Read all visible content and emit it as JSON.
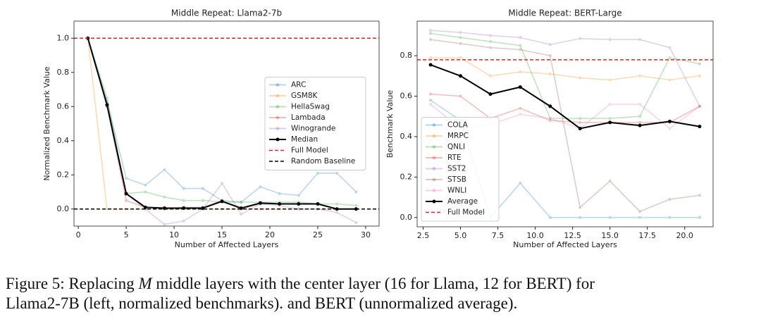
{
  "chart_data": [
    {
      "type": "line",
      "title": "Middle Repeat: Llama2-7b",
      "x_label": "Number of Affected Layers",
      "y_label": "Normalized Benchmark Value",
      "x": [
        1,
        3,
        5,
        7,
        9,
        11,
        13,
        15,
        17,
        19,
        21,
        23,
        25,
        27,
        29
      ],
      "series": [
        {
          "name": "ARC",
          "color": "#1f77b4",
          "highlight": false,
          "values": [
            1.0,
            0.63,
            0.18,
            0.14,
            0.23,
            0.12,
            0.12,
            0.05,
            0.04,
            0.13,
            0.09,
            0.08,
            0.21,
            0.21,
            0.1
          ]
        },
        {
          "name": "GSM8K",
          "color": "#ff7f0e",
          "highlight": false,
          "values": [
            1.0,
            0.0,
            0.0,
            0.0,
            0.0,
            0.0,
            0.0,
            0.0,
            0.0,
            0.0,
            0.0,
            0.0,
            0.0,
            0.0,
            0.0
          ]
        },
        {
          "name": "HellaSwag",
          "color": "#2ca02c",
          "highlight": false,
          "values": [
            1.0,
            0.65,
            0.09,
            0.1,
            0.07,
            0.05,
            0.05,
            0.04,
            0.04,
            0.04,
            0.04,
            0.04,
            0.03,
            0.03,
            0.02
          ]
        },
        {
          "name": "Lambada",
          "color": "#d62728",
          "highlight": false,
          "values": [
            1.0,
            0.6,
            0.05,
            0.01,
            0.0,
            0.01,
            0.01,
            0.05,
            0.0,
            0.03,
            0.03,
            0.03,
            0.03,
            0.0,
            0.0
          ]
        },
        {
          "name": "Winogrande",
          "color": "#9467bd",
          "highlight": false,
          "values": [
            1.0,
            0.6,
            0.09,
            0.0,
            -0.09,
            -0.07,
            0.0,
            0.15,
            -0.03,
            0.03,
            0.02,
            0.0,
            0.0,
            -0.02,
            -0.08
          ]
        },
        {
          "name": "Median",
          "color": "#000000",
          "highlight": true,
          "values": [
            1.0,
            0.61,
            0.09,
            0.01,
            0.005,
            0.005,
            0.005,
            0.045,
            0.005,
            0.035,
            0.03,
            0.03,
            0.03,
            0.0,
            0.0
          ]
        }
      ],
      "reference_lines": [
        {
          "name": "Full Model",
          "color": "#d62728",
          "value": 1.0
        },
        {
          "name": "Random Baseline",
          "color": "#000000",
          "value": 0.0
        }
      ],
      "xlim": [
        -0.45,
        31.4
      ],
      "ylim": [
        -0.1,
        1.1
      ],
      "xticks": [
        0,
        5,
        10,
        15,
        20,
        25,
        30
      ],
      "yticks": [
        {
          "value": 0,
          "label": "0.0"
        },
        0.2,
        0.4,
        0.6,
        0.8,
        {
          "value": 1,
          "label": "1.0"
        }
      ],
      "legend": "center right"
    },
    {
      "type": "line",
      "title": "Middle Repeat: BERT-Large",
      "x_label": "Number of Affected Layers",
      "y_label": "Benchmark Value",
      "x": [
        3,
        5,
        7,
        9,
        11,
        13,
        15,
        17,
        19,
        21
      ],
      "series": [
        {
          "name": "COLA",
          "color": "#1f77b4",
          "highlight": false,
          "values": [
            0.58,
            0.48,
            0.0,
            0.17,
            0.0,
            0.0,
            0.0,
            0.0,
            0.0,
            0.0
          ]
        },
        {
          "name": "MRPC",
          "color": "#ff7f0e",
          "highlight": false,
          "values": [
            0.79,
            0.79,
            0.7,
            0.72,
            0.71,
            0.69,
            0.68,
            0.7,
            0.68,
            0.7
          ]
        },
        {
          "name": "QNLI",
          "color": "#2ca02c",
          "highlight": false,
          "values": [
            0.91,
            0.89,
            0.87,
            0.85,
            0.49,
            0.49,
            0.49,
            0.5,
            0.79,
            0.76
          ]
        },
        {
          "name": "RTE",
          "color": "#d62728",
          "highlight": false,
          "values": [
            0.61,
            0.6,
            0.49,
            0.54,
            0.48,
            0.47,
            0.47,
            0.47,
            0.47,
            0.55
          ]
        },
        {
          "name": "SST2",
          "color": "#9467bd",
          "highlight": false,
          "values": [
            0.925,
            0.915,
            0.9,
            0.89,
            0.855,
            0.885,
            0.88,
            0.88,
            0.84,
            0.55
          ]
        },
        {
          "name": "STSB",
          "color": "#8c564b",
          "highlight": false,
          "values": [
            0.88,
            0.86,
            0.84,
            0.83,
            0.8,
            0.05,
            0.18,
            0.03,
            0.09,
            0.11
          ]
        },
        {
          "name": "WNLI",
          "color": "#e377c2",
          "highlight": false,
          "values": [
            0.56,
            0.44,
            0.46,
            0.51,
            0.49,
            0.44,
            0.56,
            0.56,
            0.44,
            0.55
          ]
        },
        {
          "name": "Average",
          "color": "#000000",
          "highlight": true,
          "values": [
            0.755,
            0.7,
            0.61,
            0.645,
            0.55,
            0.44,
            0.47,
            0.455,
            0.475,
            0.45
          ]
        }
      ],
      "reference_lines": [
        {
          "name": "Full Model",
          "color": "#d62728",
          "value": 0.78
        }
      ],
      "xlim": [
        2.1,
        21.9
      ],
      "ylim": [
        -0.046,
        0.971
      ],
      "xticks": [
        2.5,
        {
          "value": 5,
          "label": "5.0"
        },
        7.5,
        {
          "value": 10,
          "label": "10.0"
        },
        12.5,
        {
          "value": 15,
          "label": "15.0"
        },
        17.5,
        {
          "value": 20,
          "label": "20.0"
        }
      ],
      "yticks": [
        {
          "value": 0,
          "label": "0.0"
        },
        0.2,
        0.4,
        0.6,
        0.8
      ],
      "legend": "lower left"
    }
  ],
  "caption": {
    "prefix": "Figure 5: Replacing ",
    "variable": "M",
    "line1_rest": " middle layers with the center layer (16 for Llama, 12 for BERT) for",
    "line2": "Llama2-7B (left, normalized benchmarks). and BERT (unnormalized average)."
  }
}
